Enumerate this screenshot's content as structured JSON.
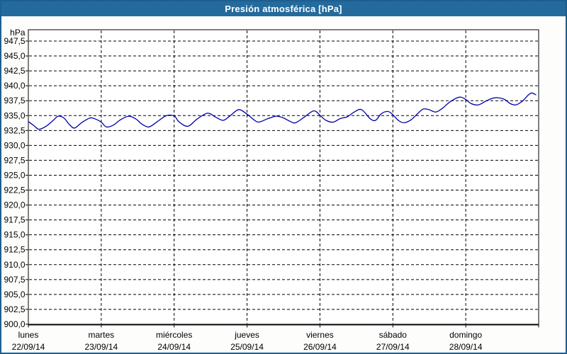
{
  "window": {
    "title": "Presión atmosférica [hPa]"
  },
  "colors": {
    "window_border": "#1E5F8F",
    "titlebar_bg": "#1F6A9F",
    "titlebar_text": "#FFFFFF",
    "content_bg": "#FDFEFB",
    "plot_bg": "#FFFFFF",
    "axis": "#000000",
    "grid": "#000000",
    "text": "#000000",
    "series_line": "#0000A8"
  },
  "chart_data": {
    "type": "line",
    "title": "Presión atmosférica [hPa]",
    "y_unit_label": "hPa",
    "ylim": [
      900,
      949.4
    ],
    "y_tick_step": 2.5,
    "grid": "dashed",
    "legend": "none",
    "y_tick_labels": [
      "947,5",
      "945,0",
      "942,5",
      "940,0",
      "937,5",
      "935,0",
      "932,5",
      "930,0",
      "927,5",
      "925,0",
      "922,5",
      "920,0",
      "917,5",
      "915,0",
      "912,5",
      "910,0",
      "907,5",
      "905,0",
      "902,5",
      "900,0"
    ],
    "y_tick_values": [
      947.5,
      945.0,
      942.5,
      940.0,
      937.5,
      935.0,
      932.5,
      930.0,
      927.5,
      925.0,
      922.5,
      920.0,
      917.5,
      915.0,
      912.5,
      910.0,
      907.5,
      905.0,
      902.5,
      900.0
    ],
    "x_axis": {
      "span_hours": 168,
      "days": [
        {
          "name": "lunes",
          "date": "22/09/14"
        },
        {
          "name": "martes",
          "date": "23/09/14"
        },
        {
          "name": "miércoles",
          "date": "24/09/14"
        },
        {
          "name": "jueves",
          "date": "25/09/14"
        },
        {
          "name": "viernes",
          "date": "26/09/14"
        },
        {
          "name": "sábado",
          "date": "27/09/14"
        },
        {
          "name": "domingo",
          "date": "28/09/14"
        }
      ]
    },
    "series": [
      {
        "name": "Presión atmosférica",
        "unit": "hPa",
        "color": "#0000A8",
        "x_hours": [
          0,
          1.9,
          3.5,
          5.8,
          8.2,
          9.8,
          11.7,
          13.5,
          15.2,
          17.5,
          20.3,
          22.2,
          24,
          25.7,
          28,
          30.3,
          33.1,
          35.5,
          37.3,
          39.7,
          42.5,
          45.5,
          48.1,
          49.5,
          52.5,
          55.5,
          59,
          61.8,
          64.2,
          66.5,
          69.3,
          72.1,
          74,
          75.8,
          78.9,
          81.7,
          84,
          86.3,
          88,
          91,
          94,
          96.1,
          98,
          100.3,
          102.7,
          105,
          107.3,
          109.7,
          112.5,
          114.3,
          116.2,
          118.3,
          119.9,
          121.8,
          123.7,
          126,
          128.3,
          130,
          131.8,
          134.2,
          136.5,
          138.8,
          141.9,
          144,
          145.8,
          148.2,
          150.5,
          152.8,
          154.5,
          156.8,
          158.7,
          160.5,
          162.6,
          164.5,
          165.7,
          167.1
        ],
        "values_hpa": [
          934.0,
          933.3,
          932.7,
          933.2,
          934.2,
          934.9,
          934.6,
          933.5,
          932.9,
          933.8,
          934.6,
          934.4,
          933.9,
          933.1,
          933.4,
          934.3,
          934.9,
          934.4,
          933.6,
          933.1,
          934.0,
          935.0,
          934.9,
          934.0,
          933.2,
          934.4,
          935.4,
          934.7,
          934.2,
          935.0,
          936.0,
          935.2,
          934.4,
          933.9,
          934.5,
          934.9,
          934.6,
          934.0,
          933.8,
          934.8,
          935.8,
          935.0,
          934.2,
          933.9,
          934.5,
          934.8,
          935.6,
          936.0,
          934.5,
          934.2,
          935.3,
          935.7,
          935.2,
          934.2,
          933.8,
          934.3,
          935.4,
          936.1,
          936.0,
          935.6,
          936.3,
          937.3,
          938.1,
          937.7,
          937.0,
          936.8,
          937.4,
          937.9,
          938.0,
          937.7,
          937.0,
          936.8,
          937.4,
          938.4,
          938.8,
          938.5
        ]
      }
    ]
  }
}
